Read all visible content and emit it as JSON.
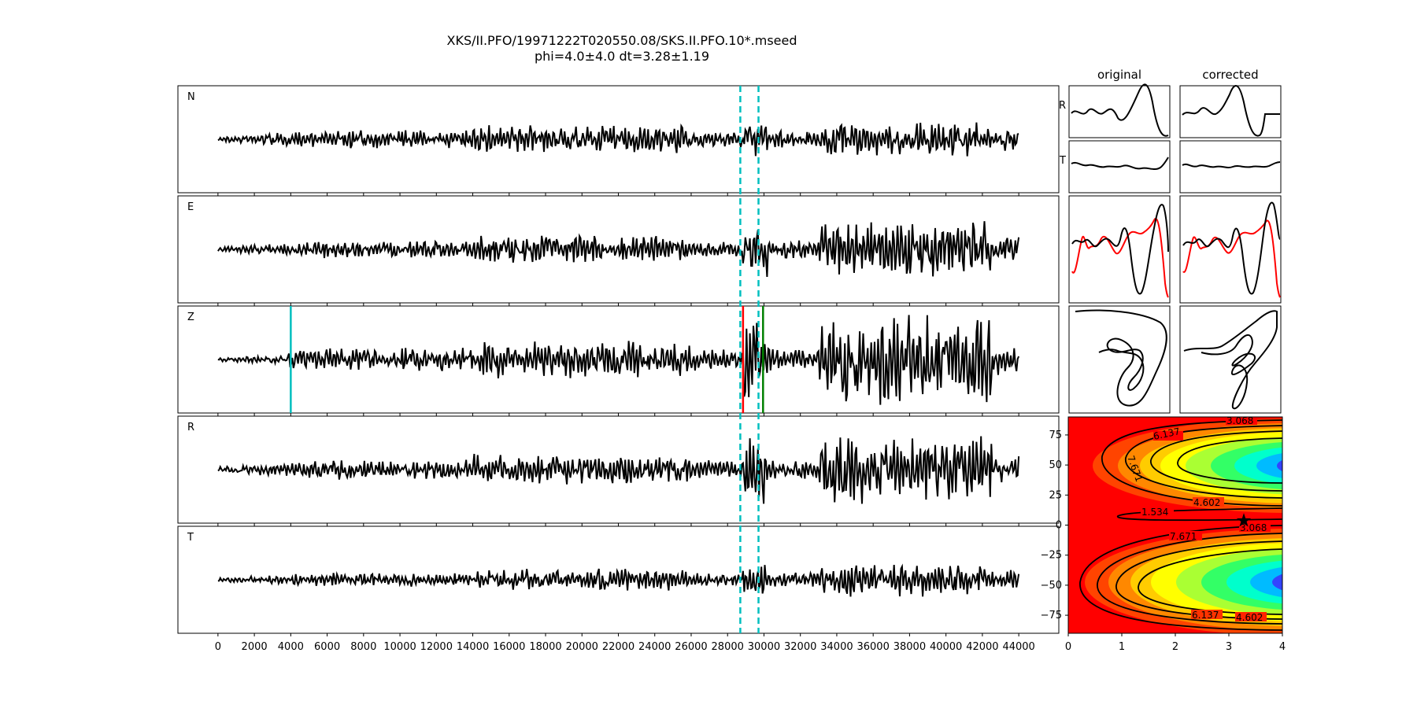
{
  "title": "XKS/II.PFO/19971222T020550.08/SKS.II.PFO.10*.mseed",
  "subtitle": "phi=4.0±4.0 dt=3.28±1.19",
  "colors": {
    "trace": "#000000",
    "window": "#00bfbf",
    "pick_early": "#00bfbf",
    "pick_red": "#ff0000",
    "pick_green": "#008000",
    "particle_red": "#ff0000"
  },
  "chart_data": [
    {
      "type": "line",
      "name": "seismogram-traces",
      "components": [
        "N",
        "E",
        "Z",
        "R",
        "T"
      ],
      "x_ticks": [
        0,
        2000,
        4000,
        6000,
        8000,
        10000,
        12000,
        14000,
        16000,
        18000,
        20000,
        22000,
        24000,
        26000,
        28000,
        30000,
        32000,
        34000,
        36000,
        38000,
        40000,
        42000,
        44000
      ],
      "xlim": [
        -2200,
        46200
      ],
      "samples_range": [
        0,
        44000
      ],
      "window_lines": [
        28700,
        29700
      ],
      "vertical_picks": [
        {
          "component": "Z",
          "x": 4000,
          "color": "cyan"
        },
        {
          "component": "Z",
          "x": 28850,
          "color": "red"
        },
        {
          "component": "Z",
          "x": 29950,
          "color": "green"
        }
      ]
    },
    {
      "type": "line",
      "name": "particle-window-waveforms",
      "column_titles": [
        "original",
        "corrected"
      ],
      "row_labels": [
        "R",
        "T"
      ]
    },
    {
      "type": "heatmap",
      "name": "error-surface",
      "xlabel": "",
      "ylabel": "",
      "x_ticks": [
        0,
        1,
        2,
        3,
        4
      ],
      "y_ticks": [
        75,
        50,
        25,
        0,
        -25,
        -50,
        -75
      ],
      "xlim": [
        0,
        4
      ],
      "ylim": [
        -90,
        90
      ],
      "best_fit": {
        "dt": 3.28,
        "phi": 4.0
      },
      "contour_labels": [
        "3.068",
        "6.137",
        "7.671",
        "4.602",
        "1.534",
        "3.068",
        "7.671",
        "6.137",
        "4.602"
      ]
    }
  ]
}
